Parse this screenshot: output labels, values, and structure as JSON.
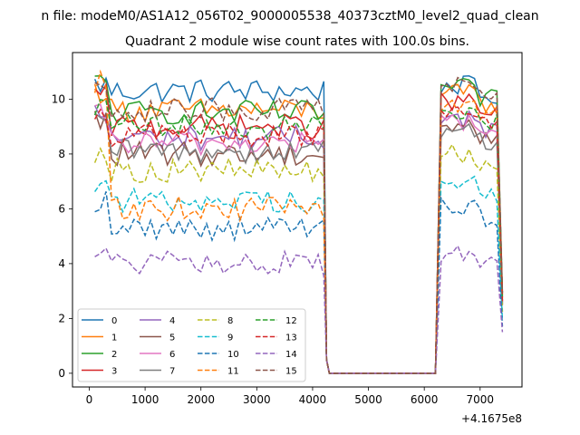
{
  "suptitle": "n file: modeM0/AS1A12_056T02_9000005538_40373cztM0_level2_quad_clean",
  "chart_data": {
    "type": "line",
    "title": "Quadrant 2 module wise count rates with 100.0s bins.",
    "xlabel": "",
    "ylabel": "",
    "x_offset_label": "+4.1675e8",
    "xlim": [
      -300,
      7750
    ],
    "ylim": [
      -0.5,
      11.7
    ],
    "xticks": [
      0,
      1000,
      2000,
      3000,
      4000,
      5000,
      6000,
      7000
    ],
    "yticks": [
      0,
      2,
      4,
      6,
      8,
      10
    ],
    "grid": false,
    "legend": {
      "placement": "lower-left",
      "columns": 4
    },
    "x": [
      100,
      200,
      300,
      400,
      500,
      600,
      700,
      800,
      900,
      1000,
      1100,
      1200,
      1300,
      1400,
      1500,
      1600,
      1700,
      1800,
      1900,
      2000,
      2100,
      2200,
      2300,
      2400,
      2500,
      2600,
      2700,
      2800,
      2900,
      3000,
      3100,
      3200,
      3300,
      3400,
      3500,
      3600,
      3700,
      3800,
      3900,
      4000,
      4100,
      4200,
      4250,
      4300,
      4400,
      4500,
      4600,
      4700,
      4800,
      4900,
      5000,
      5100,
      5200,
      5300,
      5400,
      5500,
      5600,
      5700,
      5800,
      5900,
      6000,
      6100,
      6200,
      6300,
      6400,
      6500,
      6600,
      6700,
      6800,
      6900,
      7000,
      7100,
      7200,
      7300,
      7400
    ],
    "series": [
      {
        "name": "0",
        "color": "#1f77b4",
        "dash": "solid",
        "level": 10.3,
        "high": 10.5
      },
      {
        "name": "1",
        "color": "#ff7f0e",
        "dash": "solid",
        "level": 9.6,
        "high": 10.2
      },
      {
        "name": "2",
        "color": "#2ca02c",
        "dash": "solid",
        "level": 9.5,
        "high": 10.4
      },
      {
        "name": "3",
        "color": "#d62728",
        "dash": "solid",
        "level": 9.0,
        "high": 9.9
      },
      {
        "name": "4",
        "color": "#9467bd",
        "dash": "solid",
        "level": 8.6,
        "high": 9.3
      },
      {
        "name": "5",
        "color": "#8c564b",
        "dash": "solid",
        "level": 8.0,
        "high": 9.0
      },
      {
        "name": "6",
        "color": "#e377c2",
        "dash": "solid",
        "level": 8.4,
        "high": 9.2
      },
      {
        "name": "7",
        "color": "#7f7f7f",
        "dash": "solid",
        "level": 8.1,
        "high": 8.9
      },
      {
        "name": "8",
        "color": "#bcbd22",
        "dash": "dashed",
        "level": 7.4,
        "high": 8.0
      },
      {
        "name": "9",
        "color": "#17becf",
        "dash": "dashed",
        "level": 6.3,
        "high": 6.9
      },
      {
        "name": "10",
        "color": "#1f77b4",
        "dash": "dashed",
        "level": 5.3,
        "high": 6.1
      },
      {
        "name": "11",
        "color": "#ff7f0e",
        "dash": "dashed",
        "level": 6.0,
        "high": 9.8
      },
      {
        "name": "12",
        "color": "#2ca02c",
        "dash": "dashed",
        "level": 9.0,
        "high": 9.6
      },
      {
        "name": "13",
        "color": "#d62728",
        "dash": "dashed",
        "level": 8.7,
        "high": 9.4
      },
      {
        "name": "14",
        "color": "#9467bd",
        "dash": "dashed",
        "level": 4.0,
        "high": 4.4
      },
      {
        "name": "15",
        "color": "#8c564b",
        "dash": "dashed",
        "level": 9.6,
        "high": 10.6
      }
    ]
  }
}
